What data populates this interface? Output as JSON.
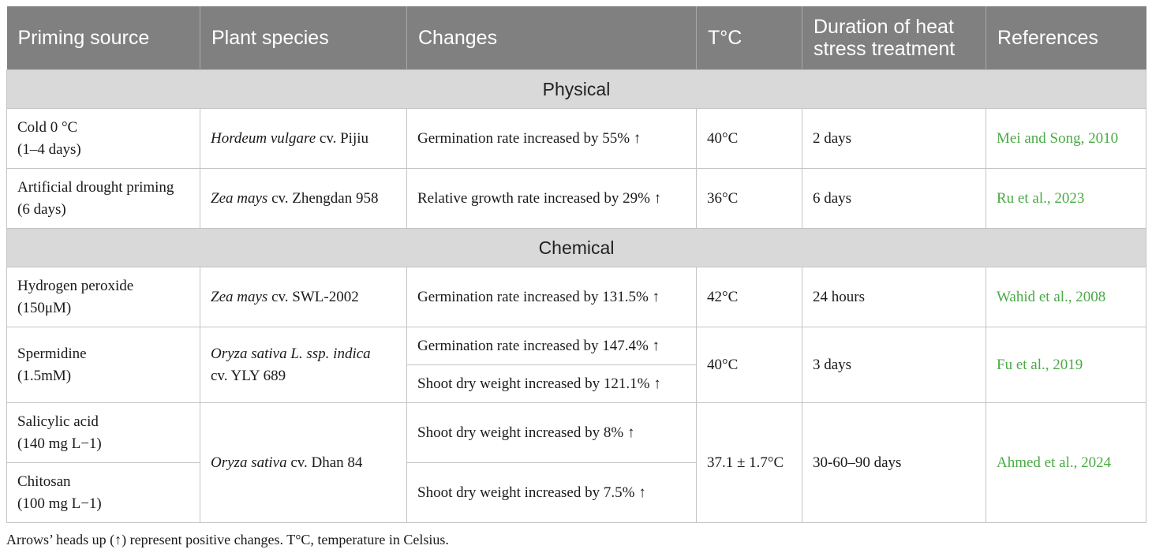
{
  "table": {
    "headers": [
      "Priming source",
      "Plant species",
      "Changes",
      "T°C",
      "Duration of heat stress treatment",
      "References"
    ],
    "sections": {
      "physical": "Physical",
      "chemical": "Chemical"
    },
    "rows": {
      "cold": {
        "source_line1": "Cold 0 °C",
        "source_line2": "(1–4 days)",
        "species_italic": "Hordeum vulgare",
        "species_rest": " cv. Pijiu",
        "change": "Germination rate increased by 55% ↑",
        "temp": "40°C",
        "duration": "2 days",
        "reference": "Mei and Song, 2010"
      },
      "drought": {
        "source_line1": "Artificial drought priming",
        "source_line2": "(6 days)",
        "species_italic": "Zea mays",
        "species_rest": " cv. Zhengdan 958",
        "change": "Relative growth rate increased by 29% ↑",
        "temp": "36°C",
        "duration": "6 days",
        "reference": "Ru et al., 2023"
      },
      "h2o2": {
        "source_line1": "Hydrogen peroxide",
        "source_line2": "(150μM)",
        "species_italic": "Zea mays",
        "species_rest": " cv. SWL-2002",
        "change": "Germination rate increased by 131.5% ↑",
        "temp": "42°C",
        "duration": "24 hours",
        "reference": "Wahid et al., 2008"
      },
      "spermidine": {
        "source_line1": "Spermidine",
        "source_line2": "(1.5mM)",
        "species_italic": "Oryza sativa L. ssp. indica",
        "species_line2": "cv. YLY 689",
        "change1": "Germination rate increased by 147.4% ↑",
        "change2": "Shoot dry weight increased by 121.1% ↑",
        "temp": "40°C",
        "duration": "3 days",
        "reference": "Fu et al., 2019"
      },
      "salicylic_chitosan": {
        "source1_line1": "Salicylic acid",
        "source1_line2": "(140 mg L−1)",
        "source2_line1": "Chitosan",
        "source2_line2": "(100 mg L−1)",
        "species_italic": "Oryza sativa",
        "species_rest": " cv. Dhan 84",
        "change1": "Shoot dry weight increased by 8% ↑",
        "change2": "Shoot dry weight increased by 7.5% ↑",
        "temp": "37.1 ± 1.7°C",
        "duration": "30-60–90 days",
        "reference": "Ahmed et al., 2024"
      }
    },
    "footnote": "Arrows’ heads up (↑) represent positive changes. T°C, temperature in Celsius.",
    "colors": {
      "header_bg": "#808080",
      "section_bg": "#d9d9d9",
      "reference_text": "#4aaa45",
      "border": "#c4c4c4"
    }
  }
}
